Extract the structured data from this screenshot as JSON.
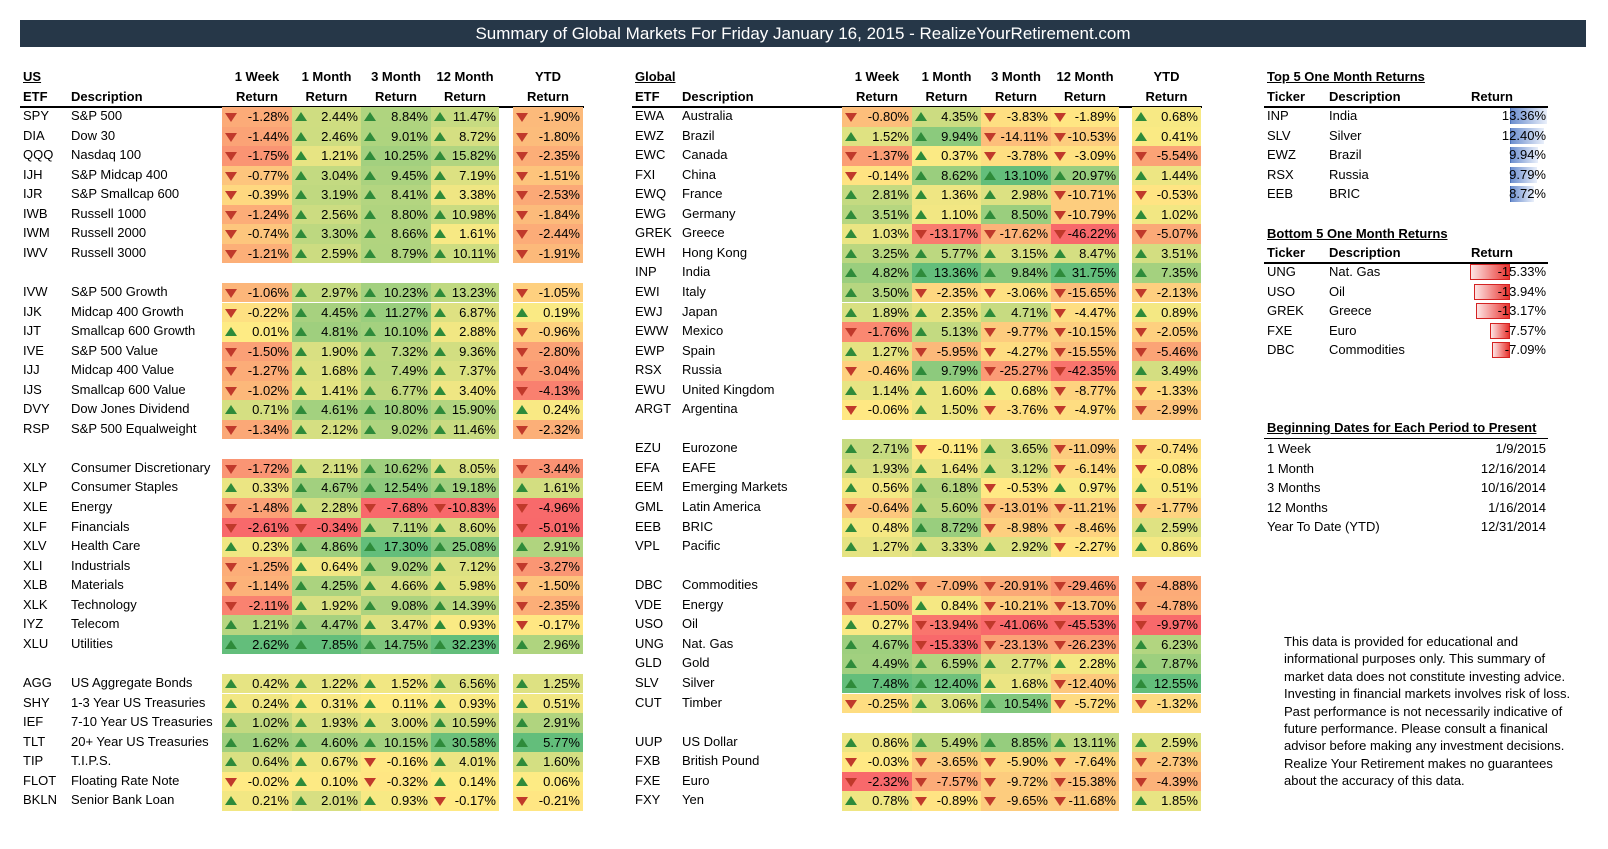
{
  "title": "Summary of Global Markets For Friday January 16, 2015 - RealizeYourRetirement.com",
  "headers": {
    "us": "US",
    "global": "Global",
    "etf": "ETF",
    "description": "Description",
    "period_top": [
      "1 Week",
      "1 Month",
      "3 Month",
      "12 Month",
      "YTD"
    ],
    "return": "Return"
  },
  "us_rows": [
    [
      "SPY",
      "S&P 500",
      -1.28,
      2.44,
      8.84,
      11.47,
      -1.9
    ],
    [
      "DIA",
      "Dow 30",
      -1.44,
      2.46,
      9.01,
      8.72,
      -1.8
    ],
    [
      "QQQ",
      "Nasdaq 100",
      -1.75,
      1.21,
      10.25,
      15.82,
      -2.35
    ],
    [
      "IJH",
      "S&P Midcap 400",
      -0.77,
      3.04,
      9.45,
      7.19,
      -1.51
    ],
    [
      "IJR",
      "S&P Smallcap 600",
      -0.39,
      3.19,
      8.41,
      3.38,
      -2.53
    ],
    [
      "IWB",
      "Russell 1000",
      -1.24,
      2.56,
      8.8,
      10.98,
      -1.84
    ],
    [
      "IWM",
      "Russell 2000",
      -0.74,
      3.3,
      8.66,
      1.61,
      -2.44
    ],
    [
      "IWV",
      "Russell 3000",
      -1.21,
      2.59,
      8.79,
      10.11,
      -1.91
    ],
    null,
    [
      "IVW",
      "S&P 500 Growth",
      -1.06,
      2.97,
      10.23,
      13.23,
      -1.05
    ],
    [
      "IJK",
      "Midcap 400 Growth",
      -0.22,
      4.45,
      11.27,
      6.87,
      0.19
    ],
    [
      "IJT",
      "Smallcap 600 Growth",
      0.01,
      4.81,
      10.1,
      2.88,
      -0.96
    ],
    [
      "IVE",
      "S&P 500 Value",
      -1.5,
      1.9,
      7.32,
      9.36,
      -2.8
    ],
    [
      "IJJ",
      "Midcap 400 Value",
      -1.27,
      1.68,
      7.49,
      7.37,
      -3.04
    ],
    [
      "IJS",
      "Smallcap 600 Value",
      -1.02,
      1.41,
      6.77,
      3.4,
      -4.13
    ],
    [
      "DVY",
      "Dow Jones Dividend",
      0.71,
      4.61,
      10.8,
      15.9,
      0.24
    ],
    [
      "RSP",
      "S&P 500 Equalweight",
      -1.34,
      2.12,
      9.02,
      11.46,
      -2.32
    ],
    null,
    [
      "XLY",
      "Consumer Discretionary",
      -1.72,
      2.11,
      10.62,
      8.05,
      -3.44
    ],
    [
      "XLP",
      "Consumer Staples",
      0.33,
      4.67,
      12.54,
      19.18,
      1.61
    ],
    [
      "XLE",
      "Energy",
      -1.48,
      2.28,
      -7.68,
      -10.83,
      -4.96
    ],
    [
      "XLF",
      "Financials",
      -2.61,
      -0.34,
      7.11,
      8.6,
      -5.01
    ],
    [
      "XLV",
      "Health Care",
      0.23,
      4.86,
      17.3,
      25.08,
      2.91
    ],
    [
      "XLI",
      "Industrials",
      -1.25,
      0.64,
      9.02,
      7.12,
      -3.27
    ],
    [
      "XLB",
      "Materials",
      -1.14,
      4.25,
      4.66,
      5.98,
      -1.5
    ],
    [
      "XLK",
      "Technology",
      -2.11,
      1.92,
      9.08,
      14.39,
      -2.35
    ],
    [
      "IYZ",
      "Telecom",
      1.21,
      4.47,
      3.47,
      0.93,
      -0.17
    ],
    [
      "XLU",
      "Utilities",
      2.62,
      7.85,
      14.75,
      32.23,
      2.96
    ],
    null,
    [
      "AGG",
      "US Aggregate Bonds",
      0.42,
      1.22,
      1.52,
      6.56,
      1.25
    ],
    [
      "SHY",
      "1-3 Year US Treasuries",
      0.24,
      0.31,
      0.11,
      0.93,
      0.51
    ],
    [
      "IEF",
      "7-10 Year US Treasuries",
      1.02,
      1.93,
      3.0,
      10.59,
      2.91
    ],
    [
      "TLT",
      "20+ Year US Treasuries",
      1.62,
      4.6,
      10.15,
      30.58,
      5.77
    ],
    [
      "TIP",
      "T.I.P.S.",
      0.64,
      0.67,
      -0.16,
      4.01,
      1.6
    ],
    [
      "FLOT",
      "Floating Rate Note",
      -0.02,
      0.1,
      -0.32,
      0.14,
      0.06
    ],
    [
      "BKLN",
      "Senior Bank Loan",
      0.21,
      2.01,
      0.93,
      -0.17,
      -0.21
    ]
  ],
  "global_rows": [
    [
      "EWA",
      "Australia",
      -0.8,
      4.35,
      -3.83,
      -1.89,
      0.68
    ],
    [
      "EWZ",
      "Brazil",
      1.52,
      9.94,
      -14.11,
      -10.53,
      0.41
    ],
    [
      "EWC",
      "Canada",
      -1.37,
      0.37,
      -3.78,
      -3.09,
      -5.54
    ],
    [
      "FXI",
      "China",
      -0.14,
      8.62,
      13.1,
      20.97,
      1.44
    ],
    [
      "EWQ",
      "France",
      2.81,
      1.36,
      2.98,
      -10.71,
      -0.53
    ],
    [
      "EWG",
      "Germany",
      3.51,
      1.1,
      8.5,
      -10.79,
      1.02
    ],
    [
      "GREK",
      "Greece",
      1.03,
      -13.17,
      -17.62,
      -46.22,
      -5.07
    ],
    [
      "EWH",
      "Hong Kong",
      3.25,
      5.77,
      3.15,
      8.47,
      3.51
    ],
    [
      "INP",
      "India",
      4.82,
      13.36,
      9.84,
      31.75,
      7.35
    ],
    [
      "EWI",
      "Italy",
      3.5,
      -2.35,
      -3.06,
      -15.65,
      -2.13
    ],
    [
      "EWJ",
      "Japan",
      1.89,
      2.35,
      4.71,
      -4.47,
      0.89
    ],
    [
      "EWW",
      "Mexico",
      -1.76,
      5.13,
      -9.77,
      -10.15,
      -2.05
    ],
    [
      "EWP",
      "Spain",
      1.27,
      -5.95,
      -4.27,
      -15.55,
      -5.46
    ],
    [
      "RSX",
      "Russia",
      -0.46,
      9.79,
      -25.27,
      -42.35,
      3.49
    ],
    [
      "EWU",
      "United Kingdom",
      1.14,
      1.6,
      0.68,
      -8.77,
      -1.33
    ],
    [
      "ARGT",
      "Argentina",
      -0.06,
      1.5,
      -3.76,
      -4.97,
      -2.99
    ],
    null,
    [
      "EZU",
      "Eurozone",
      2.71,
      -0.11,
      3.65,
      -11.09,
      -0.74
    ],
    [
      "EFA",
      "EAFE",
      1.93,
      1.64,
      3.12,
      -6.14,
      -0.08
    ],
    [
      "EEM",
      "Emerging Markets",
      0.56,
      6.18,
      -0.53,
      0.97,
      0.51
    ],
    [
      "GML",
      "Latin America",
      -0.64,
      5.6,
      -13.01,
      -11.21,
      -1.77
    ],
    [
      "EEB",
      "BRIC",
      0.48,
      8.72,
      -8.98,
      -8.46,
      2.59
    ],
    [
      "VPL",
      "Pacific",
      1.27,
      3.33,
      2.92,
      -2.27,
      0.86
    ],
    null,
    [
      "DBC",
      "Commodities",
      -1.02,
      -7.09,
      -20.91,
      -29.46,
      -4.88
    ],
    [
      "VDE",
      "Energy",
      -1.5,
      0.84,
      -10.21,
      -13.7,
      -4.78
    ],
    [
      "USO",
      "Oil",
      0.27,
      -13.94,
      -41.06,
      -45.53,
      -9.97
    ],
    [
      "UNG",
      "Nat. Gas",
      4.67,
      -15.33,
      -23.13,
      -26.23,
      6.23
    ],
    [
      "GLD",
      "Gold",
      4.49,
      6.59,
      2.77,
      2.28,
      7.87
    ],
    [
      "SLV",
      "Silver",
      7.48,
      12.4,
      1.68,
      -12.4,
      12.55
    ],
    [
      "CUT",
      "Timber",
      -0.25,
      3.06,
      10.54,
      -5.72,
      -1.32
    ],
    null,
    [
      "UUP",
      "US Dollar",
      0.86,
      5.49,
      8.85,
      13.11,
      2.59
    ],
    [
      "FXB",
      "British Pound",
      -0.03,
      -3.65,
      -5.9,
      -7.64,
      -2.73
    ],
    [
      "FXE",
      "Euro",
      -2.32,
      -7.57,
      -9.72,
      -15.38,
      -4.39
    ],
    [
      "FXY",
      "Yen",
      0.78,
      -0.89,
      -9.65,
      -11.68,
      1.85
    ]
  ],
  "top5": {
    "title": "Top 5 One Month Returns",
    "headers": [
      "Ticker",
      "Description",
      "Return"
    ],
    "rows": [
      [
        "INP",
        "India",
        13.36
      ],
      [
        "SLV",
        "Silver",
        12.4
      ],
      [
        "EWZ",
        "Brazil",
        9.94
      ],
      [
        "RSX",
        "Russia",
        9.79
      ],
      [
        "EEB",
        "BRIC",
        8.72
      ]
    ]
  },
  "bottom5": {
    "title": "Bottom 5 One Month Returns",
    "headers": [
      "Ticker",
      "Description",
      "Return"
    ],
    "rows": [
      [
        "UNG",
        "Nat. Gas",
        -15.33
      ],
      [
        "USO",
        "Oil",
        -13.94
      ],
      [
        "GREK",
        "Greece",
        -13.17
      ],
      [
        "FXE",
        "Euro",
        -7.57
      ],
      [
        "DBC",
        "Commodities",
        -7.09
      ]
    ]
  },
  "dates": {
    "title": "Beginning Dates for Each Period to Present",
    "rows": [
      [
        "1 Week",
        "1/9/2015"
      ],
      [
        "1 Month",
        "12/16/2014"
      ],
      [
        "3 Months",
        "10/16/2014"
      ],
      [
        "12 Months",
        "1/16/2014"
      ],
      [
        "Year To Date (YTD)",
        "12/31/2014"
      ]
    ]
  },
  "disclaimer": "This data is provided for educational and informational purposes only. This summary of market data does not constitute investing advice. Investing in financial markets involves risk of loss.  Past performance is not necessarily indicative of future performance. Please consult a finanical advisor before making any investment decisions. Realize Your Retirement makes no guarantees about the accuracy of this data.",
  "colors": {
    "title_bg": "#263748",
    "up": "#2e8b3a",
    "down": "#c0392b",
    "red": "#f8696b",
    "yellow": "#ffeb84",
    "green": "#63be7b"
  }
}
